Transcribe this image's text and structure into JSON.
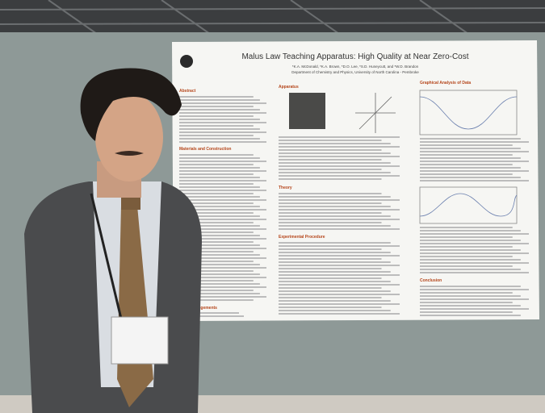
{
  "poster": {
    "title": "Malus Law Teaching Apparatus: High Quality at Near Zero-Cost",
    "authors": "*K.A. McDonald, *K.A. Brown, *D.O. Lee, *S.D. Huneycutt, and *W.D. Brandon",
    "affiliation": "Department of Chemistry and Physics, University of North Carolina - Pembroke",
    "sections": [
      "Abstract",
      "Materials and Construction",
      "Acknowledgements",
      "Apparatus",
      "Theory",
      "Experimental Procedure",
      "Graphical Analysis of Data",
      "Conclusion"
    ]
  }
}
